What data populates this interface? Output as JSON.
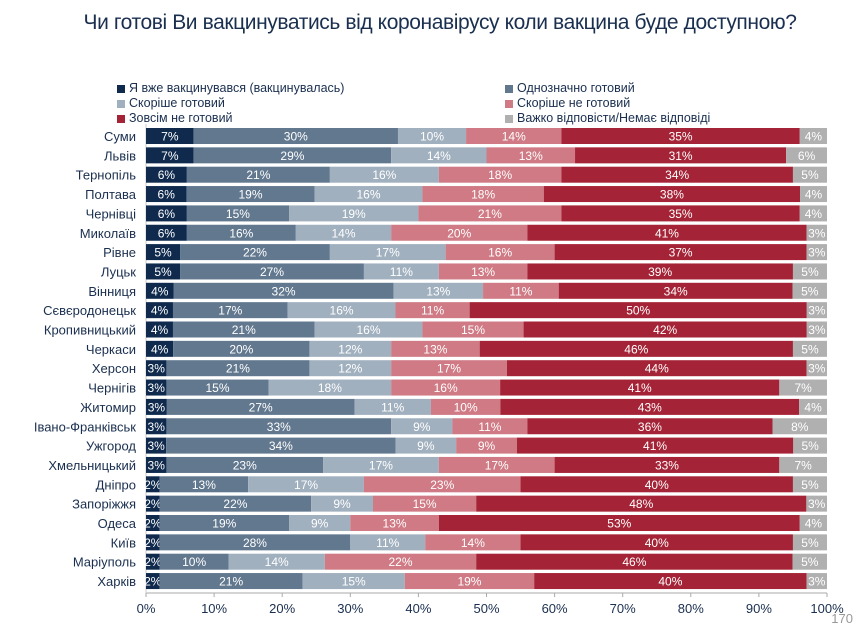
{
  "chart_data": {
    "type": "bar",
    "orientation": "horizontal",
    "stacked": true,
    "title": "Чи готові Ви вакцинуватись від коронавірусу коли вакцина буде доступною?",
    "xlim": [
      0,
      100
    ],
    "xticks": [
      "0%",
      "10%",
      "20%",
      "30%",
      "40%",
      "50%",
      "60%",
      "70%",
      "80%",
      "90%",
      "100%"
    ],
    "legend_position": "top",
    "categories": [
      "Суми",
      "Львів",
      "Тернопіль",
      "Полтава",
      "Чернівці",
      "Миколаїв",
      "Рівне",
      "Луцьк",
      "Вінниця",
      "Сєвєродонецьк",
      "Кропивницький",
      "Черкаси",
      "Херсон",
      "Чернігів",
      "Житомир",
      "Івано-Франківськ",
      "Ужгород",
      "Хмельницький",
      "Дніпро",
      "Запоріжжя",
      "Одеса",
      "Київ",
      "Маріуполь",
      "Харків"
    ],
    "series": [
      {
        "name": "Я вже вакцинувався (вакцинувалась)",
        "color": "#0f2a4d",
        "values": [
          7,
          7,
          6,
          6,
          6,
          6,
          5,
          5,
          4,
          4,
          4,
          4,
          3,
          3,
          3,
          3,
          3,
          3,
          2,
          2,
          2,
          2,
          2,
          2
        ]
      },
      {
        "name": "Однозначно готовий",
        "color": "#62788f",
        "values": [
          30,
          29,
          21,
          19,
          15,
          16,
          22,
          27,
          32,
          17,
          21,
          20,
          21,
          15,
          27,
          33,
          34,
          23,
          13,
          22,
          19,
          28,
          10,
          21
        ]
      },
      {
        "name": "Скоріше готовий",
        "color": "#a1b0bf",
        "values": [
          10,
          14,
          16,
          16,
          19,
          14,
          17,
          11,
          13,
          16,
          16,
          12,
          12,
          18,
          11,
          9,
          9,
          17,
          17,
          9,
          9,
          11,
          14,
          15
        ]
      },
      {
        "name": "Скоріше не готовий",
        "color": "#cf7a84",
        "values": [
          14,
          13,
          18,
          18,
          21,
          20,
          16,
          13,
          11,
          11,
          15,
          13,
          17,
          16,
          10,
          11,
          9,
          17,
          23,
          15,
          13,
          14,
          22,
          19
        ]
      },
      {
        "name": "Зовсім не готовий",
        "color": "#a52336",
        "values": [
          35,
          31,
          34,
          38,
          35,
          41,
          37,
          39,
          34,
          50,
          42,
          46,
          44,
          41,
          43,
          36,
          41,
          33,
          40,
          48,
          53,
          40,
          46,
          40
        ]
      },
      {
        "name": "Важко відповісти/Немає відповіді",
        "color": "#b0b0b0",
        "values": [
          4,
          6,
          5,
          4,
          4,
          3,
          3,
          5,
          5,
          3,
          3,
          5,
          3,
          7,
          4,
          8,
          5,
          7,
          5,
          3,
          4,
          5,
          5,
          3
        ]
      }
    ]
  },
  "page_number": "170"
}
